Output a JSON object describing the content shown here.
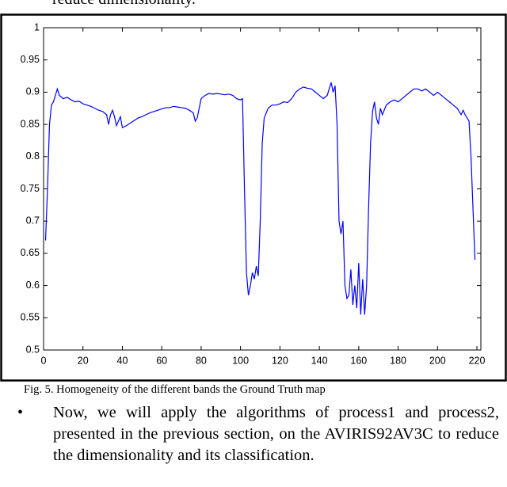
{
  "header_text": "reduce dimensionality.",
  "chart_data": {
    "type": "line",
    "color": "#0000ff",
    "x": [
      1,
      2,
      3,
      4,
      5,
      6,
      7,
      8,
      10,
      12,
      14,
      16,
      18,
      20,
      22,
      24,
      26,
      28,
      30,
      32,
      33,
      34,
      35,
      36,
      37,
      38,
      39,
      40,
      42,
      44,
      46,
      48,
      50,
      52,
      54,
      56,
      58,
      60,
      62,
      64,
      66,
      68,
      70,
      72,
      74,
      76,
      77,
      78,
      79,
      80,
      82,
      84,
      86,
      88,
      90,
      92,
      94,
      96,
      98,
      100,
      101,
      102,
      103,
      104,
      105,
      106,
      107,
      108,
      109,
      110,
      111,
      112,
      114,
      116,
      118,
      120,
      122,
      124,
      126,
      128,
      130,
      132,
      134,
      136,
      138,
      140,
      142,
      144,
      145,
      146,
      147,
      148,
      149,
      150,
      151,
      152,
      153,
      154,
      155,
      156,
      157,
      158,
      159,
      160,
      161,
      162,
      163,
      164,
      165,
      166,
      167,
      168,
      169,
      170,
      171,
      172,
      174,
      176,
      178,
      180,
      182,
      184,
      186,
      188,
      190,
      192,
      194,
      196,
      198,
      200,
      202,
      204,
      206,
      208,
      210,
      212,
      213,
      214,
      215,
      216,
      217,
      218,
      219
    ],
    "values": [
      0.67,
      0.75,
      0.85,
      0.88,
      0.885,
      0.895,
      0.905,
      0.895,
      0.89,
      0.892,
      0.888,
      0.885,
      0.886,
      0.882,
      0.88,
      0.878,
      0.875,
      0.872,
      0.87,
      0.865,
      0.85,
      0.865,
      0.872,
      0.862,
      0.848,
      0.855,
      0.862,
      0.845,
      0.848,
      0.852,
      0.856,
      0.86,
      0.862,
      0.865,
      0.868,
      0.87,
      0.872,
      0.874,
      0.876,
      0.876,
      0.878,
      0.877,
      0.876,
      0.875,
      0.872,
      0.868,
      0.855,
      0.86,
      0.875,
      0.89,
      0.895,
      0.898,
      0.897,
      0.898,
      0.897,
      0.896,
      0.897,
      0.895,
      0.89,
      0.888,
      0.89,
      0.75,
      0.62,
      0.585,
      0.6,
      0.62,
      0.61,
      0.63,
      0.615,
      0.7,
      0.82,
      0.86,
      0.875,
      0.88,
      0.88,
      0.882,
      0.885,
      0.884,
      0.89,
      0.9,
      0.905,
      0.908,
      0.906,
      0.905,
      0.9,
      0.895,
      0.89,
      0.895,
      0.905,
      0.915,
      0.9,
      0.91,
      0.85,
      0.7,
      0.68,
      0.7,
      0.6,
      0.58,
      0.585,
      0.625,
      0.57,
      0.6,
      0.565,
      0.635,
      0.555,
      0.61,
      0.555,
      0.6,
      0.72,
      0.82,
      0.87,
      0.885,
      0.86,
      0.85,
      0.875,
      0.865,
      0.88,
      0.885,
      0.888,
      0.885,
      0.89,
      0.895,
      0.9,
      0.905,
      0.905,
      0.902,
      0.905,
      0.9,
      0.895,
      0.9,
      0.895,
      0.89,
      0.885,
      0.88,
      0.875,
      0.865,
      0.872,
      0.865,
      0.86,
      0.855,
      0.8,
      0.72,
      0.64
    ],
    "xlim": [
      0,
      222
    ],
    "ylim": [
      0.5,
      1
    ],
    "xticks": [
      0,
      20,
      40,
      60,
      80,
      100,
      120,
      140,
      160,
      180,
      200,
      220
    ],
    "yticks": [
      0.5,
      0.55,
      0.6,
      0.65,
      0.7,
      0.75,
      0.8,
      0.85,
      0.9,
      0.95,
      1
    ]
  },
  "caption": "Fig. 5.   Homogeneity of the different bands the Ground Truth map",
  "bullet": "Now, we will apply the algorithms of process1 and process2, presented in the previous section, on the AVIRIS92AV3C to reduce the dimensionality and its classification."
}
